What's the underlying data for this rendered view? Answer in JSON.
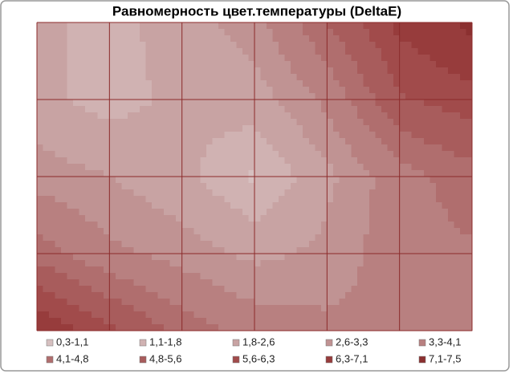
{
  "chart_data": {
    "type": "contour",
    "title": "Равномерность цвет.температуры (DeltaE)",
    "values": [
      [
        2.0,
        1.5,
        2.2,
        3.0,
        4.8,
        6.5,
        7.3
      ],
      [
        2.0,
        1.5,
        2.0,
        2.2,
        3.5,
        5.5,
        6.0
      ],
      [
        3.0,
        2.6,
        2.0,
        1.0,
        2.4,
        3.8,
        4.5
      ],
      [
        4.5,
        3.5,
        3.0,
        2.4,
        2.8,
        3.8,
        4.0
      ],
      [
        7.0,
        5.8,
        4.5,
        3.8,
        3.5,
        3.5,
        3.8
      ]
    ],
    "levels": [
      0.3,
      1.1,
      1.8,
      2.6,
      3.3,
      4.1,
      4.8,
      5.6,
      6.3,
      7.1,
      7.5
    ],
    "bands": [
      {
        "name": "0,3-1,1",
        "color": "#d6c0c0"
      },
      {
        "name": "1,1-1,8",
        "color": "#d0b2b2"
      },
      {
        "name": "1,8-2,6",
        "color": "#c8a3a3"
      },
      {
        "name": "2,6-3,3",
        "color": "#c09393"
      },
      {
        "name": "3,3-4,1",
        "color": "#b88080"
      },
      {
        "name": "4,1-4,8",
        "color": "#b06e6e"
      },
      {
        "name": "4,8-5,6",
        "color": "#a85c5c"
      },
      {
        "name": "5,6-6,3",
        "color": "#a14b4b"
      },
      {
        "name": "6,3-7,1",
        "color": "#973c3c"
      },
      {
        "name": "7,1-7,5",
        "color": "#8b3030"
      }
    ],
    "grid": true
  }
}
